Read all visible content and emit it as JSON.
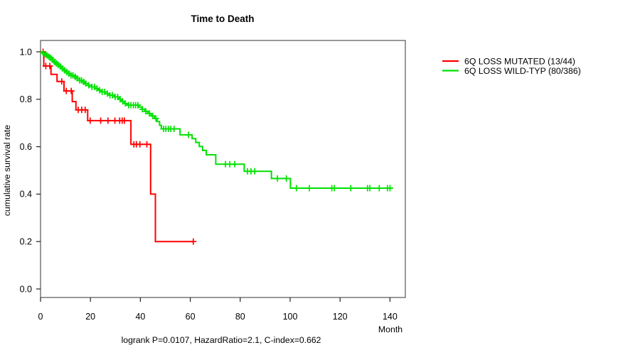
{
  "title": "Time to Death",
  "axes": {
    "x_label": "Month",
    "y_label": "cumulative survival rate",
    "x_ticks": [
      "0",
      "20",
      "40",
      "60",
      "80",
      "100",
      "120",
      "140"
    ],
    "y_ticks": [
      "0.0",
      "0.2",
      "0.4",
      "0.6",
      "0.8",
      "1.0"
    ]
  },
  "legend": [
    {
      "label": "6Q LOSS MUTATED (13/44)",
      "color": "#ff0000"
    },
    {
      "label": "6Q LOSS WILD-TYP (80/386)",
      "color": "#00e100"
    }
  ],
  "footnote": "logrank P=0.0107, HazardRatio=2.1, C-index=0.662",
  "colors": {
    "frame": "#555555",
    "tick": "#222222"
  },
  "chart_data": {
    "type": "line",
    "subtype": "kaplan-meier-step-curves",
    "title": "Time to Death",
    "xlabel": "Month",
    "ylabel": "cumulative survival rate",
    "xlim": [
      0,
      146
    ],
    "ylim": [
      0,
      1.0
    ],
    "x_tick_values": [
      0,
      20,
      40,
      60,
      80,
      100,
      120,
      140
    ],
    "y_tick_values": [
      0.0,
      0.2,
      0.4,
      0.6,
      0.8,
      1.0
    ],
    "grid": false,
    "legend_position": "right-outside",
    "series": [
      {
        "name": "6Q LOSS MUTATED (13/44)",
        "color": "#ff0000",
        "events_total": "13/44",
        "steps": [
          [
            0,
            1.0
          ],
          [
            1.3,
            0.94
          ],
          [
            4.2,
            0.905
          ],
          [
            6.6,
            0.875
          ],
          [
            9.4,
            0.835
          ],
          [
            12.7,
            0.79
          ],
          [
            14.2,
            0.755
          ],
          [
            18.9,
            0.71
          ],
          [
            36.2,
            0.61
          ],
          [
            44.1,
            0.4
          ],
          [
            46.0,
            0.2
          ]
        ],
        "end_time": 61.6,
        "censor_times": [
          1.0,
          2.1,
          3.7,
          8.5,
          10.3,
          12.3,
          15.1,
          16.5,
          17.9,
          19.9,
          24.1,
          27.0,
          29.8,
          31.7,
          32.7,
          33.6,
          37.4,
          38.4,
          39.8,
          42.6,
          61.2
        ]
      },
      {
        "name": "6Q LOSS WILD-TYP (80/386)",
        "color": "#00e100",
        "events_total": "80/386",
        "steps": [
          [
            0,
            1.0
          ],
          [
            0.8,
            0.995
          ],
          [
            1.5,
            0.99
          ],
          [
            2.3,
            0.985
          ],
          [
            3.0,
            0.979
          ],
          [
            3.8,
            0.974
          ],
          [
            4.5,
            0.966
          ],
          [
            5.3,
            0.958
          ],
          [
            6.0,
            0.951
          ],
          [
            6.8,
            0.945
          ],
          [
            7.5,
            0.938
          ],
          [
            8.5,
            0.93
          ],
          [
            9.4,
            0.922
          ],
          [
            10.3,
            0.915
          ],
          [
            11.3,
            0.908
          ],
          [
            12.2,
            0.901
          ],
          [
            13.3,
            0.895
          ],
          [
            14.5,
            0.888
          ],
          [
            15.6,
            0.88
          ],
          [
            16.7,
            0.873
          ],
          [
            17.8,
            0.866
          ],
          [
            19.2,
            0.859
          ],
          [
            20.5,
            0.852
          ],
          [
            21.8,
            0.845
          ],
          [
            23.1,
            0.838
          ],
          [
            24.4,
            0.831
          ],
          [
            25.9,
            0.824
          ],
          [
            27.6,
            0.817
          ],
          [
            29.6,
            0.81
          ],
          [
            31.3,
            0.8
          ],
          [
            32.5,
            0.791
          ],
          [
            33.6,
            0.782
          ],
          [
            34.7,
            0.775
          ],
          [
            39.4,
            0.767
          ],
          [
            40.6,
            0.758
          ],
          [
            41.7,
            0.749
          ],
          [
            43.0,
            0.74
          ],
          [
            44.3,
            0.73
          ],
          [
            45.6,
            0.719
          ],
          [
            46.7,
            0.706
          ],
          [
            47.7,
            0.69
          ],
          [
            48.4,
            0.675
          ],
          [
            55.9,
            0.65
          ],
          [
            60.7,
            0.634
          ],
          [
            62.2,
            0.618
          ],
          [
            63.6,
            0.601
          ],
          [
            64.9,
            0.584
          ],
          [
            66.4,
            0.566
          ],
          [
            70.2,
            0.526
          ],
          [
            81.6,
            0.496
          ],
          [
            92.5,
            0.466
          ],
          [
            100.1,
            0.425
          ]
        ],
        "end_time": 141.0,
        "censor_times": [
          1.1,
          1.9,
          2.6,
          3.4,
          4.1,
          4.9,
          5.6,
          6.4,
          7.1,
          8.0,
          8.8,
          9.7,
          10.5,
          11.4,
          12.2,
          13.0,
          13.9,
          14.7,
          15.6,
          16.4,
          17.3,
          18.1,
          19.3,
          20.6,
          21.6,
          22.6,
          23.7,
          24.7,
          25.7,
          26.8,
          27.8,
          28.8,
          29.9,
          30.9,
          31.9,
          32.9,
          34.0,
          35.3,
          36.2,
          37.2,
          38.1,
          39.0,
          40.8,
          42.2,
          43.6,
          44.9,
          46.2,
          49.3,
          50.2,
          51.2,
          52.2,
          53.5,
          59.3,
          74.1,
          75.8,
          77.8,
          82.9,
          84.3,
          85.8,
          94.9,
          98.5,
          102.5,
          107.7,
          116.7,
          117.7,
          124.3,
          131.0,
          131.9,
          135.7,
          139.0,
          140.0
        ]
      }
    ]
  }
}
